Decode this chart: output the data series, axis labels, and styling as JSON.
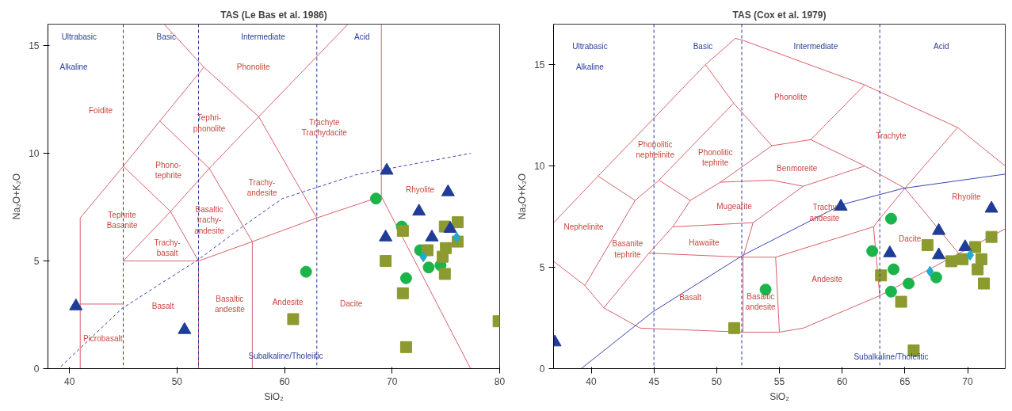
{
  "chart_data": [
    {
      "type": "scatter",
      "title": "TAS (Le Bas et al. 1986)",
      "xlabel": "SiO₂",
      "ylabel": "Na₂O+K₂O",
      "xlim": [
        38,
        80
      ],
      "ylim": [
        0,
        16
      ],
      "xticks": [
        40,
        50,
        60,
        70,
        80
      ],
      "yticks": [
        0,
        5,
        10,
        15
      ],
      "grid": false,
      "ref_lines": [
        {
          "axis": "x",
          "value": 45,
          "color": "#2a3d9a",
          "line_style": "dashed"
        },
        {
          "axis": "x",
          "value": 52,
          "color": "#2a3d9a",
          "line_style": "dashed"
        },
        {
          "axis": "x",
          "value": 63,
          "color": "#2a3d9a",
          "line_style": "dashed"
        }
      ],
      "series": [
        {
          "type": "line",
          "color": "#d9606b",
          "x": [
            41,
            41,
            45,
            49.4,
            45,
            52,
            57,
            63,
            69,
            77.3
          ],
          "values": [
            0,
            7,
            9.4,
            7.3,
            5,
            5,
            5.9,
            7,
            8,
            0
          ]
        },
        {
          "type": "line",
          "color": "#d9606b",
          "x": [
            41,
            45
          ],
          "values": [
            3,
            3
          ]
        },
        {
          "type": "line",
          "color": "#d9606b",
          "x": [
            49.4,
            52,
            52
          ],
          "values": [
            7.3,
            5,
            0
          ]
        },
        {
          "type": "line",
          "color": "#d9606b",
          "x": [
            45,
            48.4,
            52.5,
            48.8
          ],
          "values": [
            9.4,
            11.5,
            14,
            16
          ]
        },
        {
          "type": "line",
          "color": "#d9606b",
          "x": [
            48.4,
            53,
            57
          ],
          "values": [
            11.5,
            9.3,
            5.9
          ]
        },
        {
          "type": "line",
          "color": "#d9606b",
          "x": [
            49.4,
            53,
            57.6,
            52.5
          ],
          "values": [
            7.3,
            9.3,
            11.7,
            14
          ]
        },
        {
          "type": "line",
          "color": "#d9606b",
          "x": [
            57.6,
            63
          ],
          "values": [
            11.7,
            7
          ]
        },
        {
          "type": "line",
          "color": "#d9606b",
          "x": [
            57.6,
            65.9
          ],
          "values": [
            11.7,
            16
          ]
        },
        {
          "type": "line",
          "color": "#d9606b",
          "x": [
            57,
            57
          ],
          "values": [
            5.9,
            0
          ]
        },
        {
          "type": "line",
          "color": "#d9606b",
          "x": [
            69,
            69
          ],
          "values": [
            8,
            16
          ]
        },
        {
          "type": "line",
          "color": "#3a45b5",
          "line_style": "dashed",
          "x": [
            39.2,
            44.9,
            52.1,
            56.1,
            59.8,
            66.6,
            77.3
          ],
          "values": [
            0.1,
            2.8,
            5.1,
            6.6,
            7.9,
            9.0,
            10.0
          ]
        },
        {
          "marker": "circle",
          "color": "#1bb44a",
          "x": [
            68.5,
            62.0,
            71.3,
            70.9,
            72.6,
            73.4,
            74.5
          ],
          "values": [
            7.9,
            4.5,
            4.2,
            6.6,
            5.5,
            4.7,
            4.8
          ]
        },
        {
          "marker": "square",
          "color": "#8c9a30",
          "x": [
            60.8,
            69.4,
            71.0,
            71.3,
            71.0,
            74.9,
            79.9,
            76.1,
            74.9,
            73.3,
            74.7,
            76.1,
            75.0
          ],
          "values": [
            2.3,
            5.0,
            3.5,
            1.0,
            6.4,
            4.4,
            2.2,
            6.8,
            6.6,
            5.5,
            5.2,
            5.9,
            5.6
          ]
        },
        {
          "marker": "triangle",
          "color": "#1f3c96",
          "x": [
            40.6,
            50.7,
            69.5,
            69.4,
            72.5,
            75.2,
            73.7,
            75.4
          ],
          "values": [
            2.9,
            1.8,
            9.2,
            6.1,
            7.3,
            8.2,
            6.1,
            6.5
          ]
        },
        {
          "marker": "diamond",
          "color": "#22aacc",
          "x": [
            72.9,
            76.0
          ],
          "values": [
            5.2,
            6.1
          ]
        }
      ],
      "annotations": [
        "Ultrabasic",
        "Basic",
        "Intermediate",
        "Acid",
        "Alkaline",
        "Foidite",
        "Phonolite",
        "Tephri-\nphonolite",
        "Trachyte\nTrachydacite",
        "Phono-\ntephrite",
        "Trachy-\nandesite",
        "Tephrite\nBasanite",
        "Basaltic\ntrachy-\nandesite",
        "Trachy-\nbasalt",
        "Rhyolite",
        "Picrobasalt",
        "Basalt",
        "Basaltic\nandesite",
        "Andesite",
        "Dacite",
        "Subalkaline/Tholeiitic"
      ]
    },
    {
      "type": "scatter",
      "title": "TAS (Cox et al. 1979)",
      "xlabel": "SiO₂",
      "ylabel": "Na₂O+K₂O",
      "xlim": [
        37,
        73
      ],
      "ylim": [
        0,
        17
      ],
      "xticks": [
        40,
        45,
        50,
        55,
        60,
        65,
        70
      ],
      "yticks": [
        0,
        5,
        10,
        15
      ],
      "grid": false,
      "ref_lines": [
        {
          "axis": "x",
          "value": 45,
          "color": "#2a3d9a",
          "line_style": "dashed"
        },
        {
          "axis": "x",
          "value": 52,
          "color": "#2a3d9a",
          "line_style": "dashed"
        },
        {
          "axis": "x",
          "value": 63,
          "color": "#2a3d9a",
          "line_style": "dashed"
        }
      ],
      "series": [
        {
          "type": "line",
          "color": "#d9606b",
          "x": [
            37,
            40.55,
            49.1,
            51.5,
            52.1,
            61.8,
            69.2,
            73
          ],
          "values": [
            7.2,
            9.5,
            15.0,
            16.3,
            16.2,
            14.0,
            11.9,
            10.0
          ]
        },
        {
          "type": "line",
          "color": "#d9606b",
          "x": [
            37,
            39.5,
            41.0,
            43.9,
            52.1,
            55.0,
            56.9,
            63.0,
            73
          ],
          "values": [
            5.3,
            4.1,
            3.0,
            2.0,
            1.8,
            1.8,
            2.0,
            3.6,
            6.9
          ]
        },
        {
          "type": "line",
          "color": "#d9606b",
          "x": [
            40.55,
            43.5,
            39.5
          ],
          "values": [
            9.5,
            8.3,
            4.1
          ]
        },
        {
          "type": "line",
          "color": "#d9606b",
          "x": [
            43.5,
            45.4,
            51.35
          ],
          "values": [
            8.3,
            9.3,
            13.1
          ]
        },
        {
          "type": "line",
          "color": "#d9606b",
          "x": [
            41.0,
            44.6,
            46.5,
            47.9,
            45.4
          ],
          "values": [
            3.0,
            5.7,
            7.0,
            8.3,
            9.3
          ]
        },
        {
          "type": "line",
          "color": "#d9606b",
          "x": [
            49.1,
            51.35,
            54.4,
            57.5,
            61.8
          ],
          "values": [
            15.0,
            13.1,
            11.0,
            11.3,
            14.0
          ]
        },
        {
          "type": "line",
          "color": "#d9606b",
          "x": [
            47.9,
            50.3,
            54.4
          ],
          "values": [
            8.3,
            9.2,
            11.0
          ]
        },
        {
          "type": "line",
          "color": "#d9606b",
          "x": [
            50.3,
            54.4,
            56.9,
            61.8
          ],
          "values": [
            9.2,
            9.3,
            9.0,
            10.0
          ]
        },
        {
          "type": "line",
          "color": "#d9606b",
          "x": [
            57.5,
            61.8,
            65.0,
            69.2
          ],
          "values": [
            11.3,
            10.0,
            8.9,
            11.9
          ]
        },
        {
          "type": "line",
          "color": "#d9606b",
          "x": [
            65.0,
            69.4
          ],
          "values": [
            8.9,
            5.6
          ]
        },
        {
          "type": "line",
          "color": "#d9606b",
          "x": [
            46.5,
            52.9,
            56.9
          ],
          "values": [
            7.0,
            7.2,
            9.0
          ]
        },
        {
          "type": "line",
          "color": "#d9606b",
          "x": [
            44.6,
            52.1,
            54.7,
            62.5,
            63.0,
            65.0
          ],
          "values": [
            5.7,
            5.5,
            5.5,
            7.0,
            7.4,
            8.9
          ]
        },
        {
          "type": "line",
          "color": "#d9606b",
          "x": [
            52.9,
            52.1,
            52.1
          ],
          "values": [
            7.2,
            5.5,
            1.8
          ]
        },
        {
          "type": "line",
          "color": "#d9606b",
          "x": [
            54.7,
            55.0
          ],
          "values": [
            5.5,
            1.8
          ]
        },
        {
          "type": "line",
          "color": "#d9606b",
          "x": [
            62.5,
            63.0
          ],
          "values": [
            7.0,
            3.6
          ]
        },
        {
          "type": "line",
          "color": "#3a45b5",
          "x": [
            39.2,
            44.9,
            52.1,
            60.0,
            64.9,
            73
          ],
          "values": [
            0,
            2.8,
            5.6,
            8.1,
            8.9,
            9.6
          ]
        },
        {
          "marker": "circle",
          "color": "#1bb44a",
          "x": [
            63.9,
            62.4,
            64.1,
            65.3,
            63.9,
            53.9,
            67.5
          ],
          "values": [
            7.4,
            5.8,
            4.9,
            4.2,
            3.8,
            3.9,
            4.5
          ]
        },
        {
          "marker": "square",
          "color": "#8c9a30",
          "x": [
            51.4,
            63.1,
            64.7,
            65.7,
            66.8,
            71.9,
            71.3,
            70.8,
            68.7,
            70.6,
            71.1,
            69.6
          ],
          "values": [
            2.0,
            4.6,
            3.3,
            0.9,
            6.1,
            6.5,
            4.2,
            4.9,
            5.3,
            6.0,
            5.4,
            5.4
          ]
        },
        {
          "marker": "triangle",
          "color": "#1f3c96",
          "x": [
            37.1,
            59.9,
            63.8,
            67.7,
            67.7,
            69.8,
            71.9
          ],
          "values": [
            1.3,
            8.0,
            5.7,
            6.8,
            5.6,
            6.0,
            7.9
          ]
        },
        {
          "marker": "diamond",
          "color": "#22aacc",
          "x": [
            67.0,
            70.2
          ],
          "values": [
            4.8,
            5.6
          ]
        }
      ],
      "annotations": [
        "Ultrabasic",
        "Basic",
        "Intermediate",
        "Acid",
        "Alkaline",
        "Phonolite",
        "Trachyte",
        "Phonolitic\nnephelinite",
        "Phonolitic\ntephrite",
        "Benmoreite",
        "Mugearite",
        "Trachy\nandesite",
        "Nephelinite",
        "Rhyolite",
        "Hawaiite",
        "Basanite\ntephrite",
        "Dacite",
        "Andesite",
        "Basalt",
        "Basaltic\nandesite",
        "Subalkaline/Tholeiitic"
      ]
    }
  ]
}
